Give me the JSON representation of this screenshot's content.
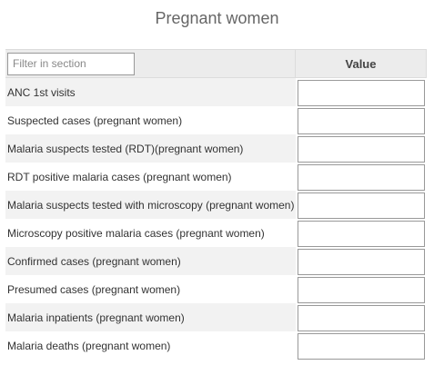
{
  "section": {
    "title": "Pregnant women"
  },
  "table": {
    "filter_placeholder": "Filter in section",
    "filter_value": "",
    "value_header": "Value",
    "rows": [
      {
        "label": "ANC 1st visits",
        "value": ""
      },
      {
        "label": "Suspected cases (pregnant women)",
        "value": ""
      },
      {
        "label": "Malaria suspects tested (RDT)(pregnant women)",
        "value": ""
      },
      {
        "label": "RDT positive malaria cases (pregnant women)",
        "value": ""
      },
      {
        "label": "Malaria suspects tested with microscopy (pregnant women)",
        "value": ""
      },
      {
        "label": "Microscopy positive malaria cases (pregnant women)",
        "value": ""
      },
      {
        "label": "Confirmed cases (pregnant women)",
        "value": ""
      },
      {
        "label": "Presumed cases (pregnant women)",
        "value": ""
      },
      {
        "label": "Malaria inpatients (pregnant women)",
        "value": ""
      },
      {
        "label": "Malaria deaths (pregnant women)",
        "value": ""
      }
    ]
  }
}
